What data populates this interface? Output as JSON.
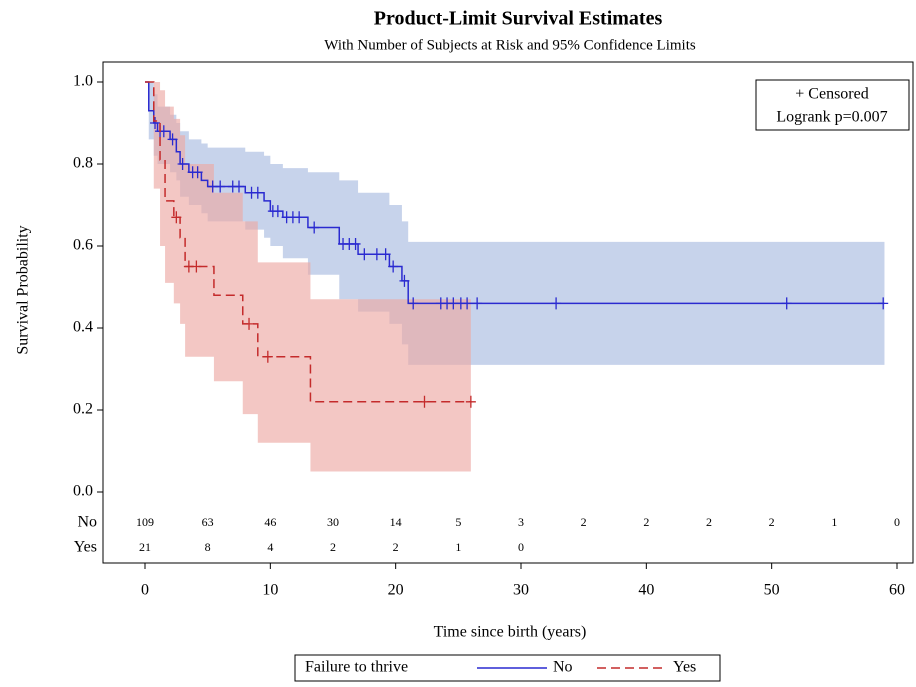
{
  "chart_data": {
    "type": "survival",
    "title": "Product-Limit Survival Estimates",
    "subtitle": "With Number of Subjects at Risk and 95% Confidence Limits",
    "x_label": "Time since birth (years)",
    "y_label": "Survival Probability",
    "xlim": [
      0,
      60
    ],
    "xticks": [
      0,
      10,
      20,
      30,
      40,
      50,
      60
    ],
    "ylim": [
      0,
      1
    ],
    "yticks": [
      {
        "value": 0,
        "label": "0.0"
      },
      {
        "value": 0.2,
        "label": "0.2"
      },
      {
        "value": 0.4,
        "label": "0.4"
      },
      {
        "value": 0.6,
        "label": "0.6"
      },
      {
        "value": 0.8,
        "label": "0.8"
      },
      {
        "value": 1,
        "label": "1.0"
      }
    ],
    "legend_title": "Failure to thrive",
    "inset": [
      "+ Censored",
      "Logrank p=0.007"
    ],
    "series": [
      {
        "name": "No",
        "color": "#2a2ad0",
        "band_color": "#a9bce0",
        "dash": false,
        "x": [
          0,
          0.3,
          0.7,
          1,
          2,
          2.5,
          2.8,
          3.5,
          4.5,
          5,
          8,
          9.5,
          10,
          11,
          13,
          15.5,
          17,
          19.5,
          20.5,
          21,
          59
        ],
        "values": [
          1,
          0.93,
          0.9,
          0.88,
          0.86,
          0.83,
          0.8,
          0.78,
          0.76,
          0.745,
          0.73,
          0.71,
          0.685,
          0.67,
          0.645,
          0.605,
          0.58,
          0.55,
          0.515,
          0.46,
          0.46
        ],
        "upper": [
          1,
          1,
          0.97,
          0.94,
          0.92,
          0.9,
          0.88,
          0.86,
          0.85,
          0.84,
          0.83,
          0.82,
          0.8,
          0.79,
          0.78,
          0.76,
          0.73,
          0.7,
          0.66,
          0.61,
          0.61
        ],
        "lower": [
          1,
          0.86,
          0.82,
          0.8,
          0.78,
          0.76,
          0.72,
          0.7,
          0.68,
          0.66,
          0.64,
          0.62,
          0.6,
          0.57,
          0.53,
          0.47,
          0.44,
          0.41,
          0.36,
          0.31,
          0.31
        ],
        "censored_x": [
          0.8,
          1.2,
          1.5,
          2.2,
          3,
          3.8,
          4.2,
          5.4,
          6,
          7,
          7.5,
          8.5,
          9,
          10.2,
          10.6,
          11.3,
          11.8,
          12.3,
          13.5,
          15.8,
          16.3,
          16.8,
          17.5,
          18.5,
          19.2,
          19.8,
          20.7,
          21.4,
          23.6,
          24.1,
          24.6,
          25.2,
          25.7,
          26.5,
          32.8,
          51.2,
          58.9
        ],
        "censored_y": [
          0.9,
          0.88,
          0.88,
          0.86,
          0.8,
          0.78,
          0.78,
          0.745,
          0.745,
          0.745,
          0.745,
          0.73,
          0.73,
          0.685,
          0.685,
          0.67,
          0.67,
          0.67,
          0.645,
          0.605,
          0.605,
          0.605,
          0.58,
          0.58,
          0.58,
          0.55,
          0.515,
          0.46,
          0.46,
          0.46,
          0.46,
          0.46,
          0.46,
          0.46,
          0.46,
          0.46,
          0.46
        ],
        "at_risk": [
          109,
          63,
          46,
          30,
          14,
          5,
          3,
          2,
          2,
          2,
          2,
          1,
          0
        ]
      },
      {
        "name": "Yes",
        "color": "#c42b2b",
        "band_color": "#eda9a5",
        "dash": true,
        "x": [
          0,
          0.7,
          1.2,
          1.6,
          2.3,
          2.8,
          3.2,
          5.5,
          7.8,
          9,
          13.2,
          26
        ],
        "values": [
          1,
          0.905,
          0.81,
          0.71,
          0.67,
          0.62,
          0.55,
          0.48,
          0.41,
          0.33,
          0.22,
          0.22
        ],
        "upper": [
          1,
          1,
          0.98,
          0.94,
          0.91,
          0.87,
          0.8,
          0.73,
          0.66,
          0.56,
          0.47,
          0.47
        ],
        "lower": [
          1,
          0.74,
          0.6,
          0.51,
          0.46,
          0.41,
          0.33,
          0.27,
          0.19,
          0.12,
          0.05,
          0.05
        ],
        "censored_x": [
          2.5,
          3.5,
          4.1,
          8.3,
          9.8,
          22.3,
          26
        ],
        "censored_y": [
          0.67,
          0.55,
          0.55,
          0.41,
          0.33,
          0.22,
          0.22
        ],
        "at_risk": [
          21,
          8,
          4,
          2,
          2,
          1,
          0
        ]
      }
    ],
    "at_risk_times": [
      0,
      5,
      10,
      15,
      20,
      25,
      30,
      35,
      40,
      45,
      50,
      55,
      60
    ]
  }
}
